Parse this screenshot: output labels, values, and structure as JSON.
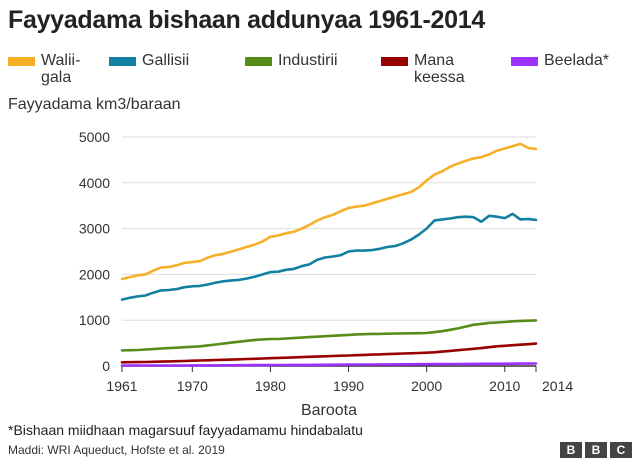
{
  "title": "Fayyadama bishaan addunyaa 1961-2014",
  "footnote": "*Bishaan miidhaan magarsuuf fayyadamamu hindabalatu",
  "source": "Maddi: WRI Aqueduct, Hofste et al. 2019",
  "logo": {
    "letters": [
      "B",
      "B",
      "C"
    ]
  },
  "chart_data": {
    "type": "line",
    "title": "Fayyadama bishaan addunyaa 1961-2014",
    "ylabel": "Fayyadama km3/baraan",
    "xlabel": "Baroota",
    "xlim": [
      1961,
      2014
    ],
    "ylim": [
      0,
      5000
    ],
    "yticks": [
      0,
      1000,
      2000,
      3000,
      4000,
      5000
    ],
    "ytick_labels": [
      "0",
      "1000",
      "2000",
      "3000",
      "4000",
      "5000"
    ],
    "xticks": [
      1961,
      1970,
      1980,
      1990,
      2000,
      2010,
      2014
    ],
    "xtick_labels": [
      "1961",
      "1970",
      "1980",
      "1990",
      "2000",
      "2010",
      "2014"
    ],
    "grid": true,
    "legend_position": "top",
    "x": [
      1961,
      1962,
      1963,
      1964,
      1965,
      1966,
      1967,
      1968,
      1969,
      1970,
      1971,
      1972,
      1973,
      1974,
      1975,
      1976,
      1977,
      1978,
      1979,
      1980,
      1981,
      1982,
      1983,
      1984,
      1985,
      1986,
      1987,
      1988,
      1989,
      1990,
      1991,
      1992,
      1993,
      1994,
      1995,
      1996,
      1997,
      1998,
      1999,
      2000,
      2001,
      2002,
      2003,
      2004,
      2005,
      2006,
      2007,
      2008,
      2009,
      2010,
      2011,
      2012,
      2013,
      2014
    ],
    "series": [
      {
        "name": "Walii-\ngala",
        "color": "#f5b028",
        "values": [
          1900,
          1940,
          1980,
          2000,
          2080,
          2150,
          2160,
          2200,
          2250,
          2270,
          2290,
          2370,
          2420,
          2450,
          2500,
          2550,
          2600,
          2650,
          2720,
          2820,
          2850,
          2900,
          2930,
          3000,
          3080,
          3180,
          3250,
          3300,
          3380,
          3450,
          3480,
          3500,
          3550,
          3600,
          3650,
          3700,
          3750,
          3800,
          3900,
          4050,
          4180,
          4250,
          4350,
          4420,
          4480,
          4530,
          4560,
          4620,
          4700,
          4750,
          4800,
          4850,
          4760,
          4740
        ]
      },
      {
        "name": "Gallisii",
        "color": "#1380a1",
        "values": [
          1450,
          1490,
          1520,
          1540,
          1600,
          1650,
          1660,
          1680,
          1720,
          1740,
          1750,
          1780,
          1820,
          1850,
          1870,
          1880,
          1910,
          1950,
          2000,
          2050,
          2060,
          2100,
          2120,
          2180,
          2220,
          2320,
          2370,
          2390,
          2420,
          2500,
          2520,
          2520,
          2530,
          2560,
          2600,
          2620,
          2680,
          2760,
          2870,
          3000,
          3180,
          3200,
          3220,
          3250,
          3260,
          3250,
          3150,
          3280,
          3260,
          3230,
          3320,
          3200,
          3210,
          3190
        ]
      },
      {
        "name": "Industirii",
        "color": "#588c18",
        "values": [
          340,
          345,
          350,
          360,
          370,
          380,
          390,
          400,
          410,
          420,
          430,
          450,
          470,
          490,
          510,
          530,
          550,
          570,
          580,
          590,
          590,
          600,
          610,
          620,
          630,
          640,
          650,
          660,
          670,
          680,
          690,
          695,
          700,
          700,
          705,
          710,
          712,
          714,
          716,
          720,
          740,
          760,
          790,
          820,
          860,
          900,
          920,
          940,
          950,
          960,
          975,
          985,
          990,
          995
        ]
      },
      {
        "name": "Mana\nkeessa",
        "color": "#990000",
        "values": [
          80,
          82,
          85,
          88,
          92,
          96,
          100,
          105,
          110,
          115,
          120,
          125,
          130,
          135,
          140,
          146,
          152,
          158,
          164,
          170,
          176,
          182,
          188,
          194,
          200,
          206,
          212,
          218,
          224,
          230,
          236,
          242,
          248,
          254,
          260,
          266,
          272,
          278,
          284,
          290,
          300,
          315,
          330,
          345,
          360,
          375,
          390,
          410,
          430,
          440,
          455,
          465,
          475,
          490
        ]
      },
      {
        "name": "Beelada*",
        "color": "#9b30ff",
        "values": [
          10,
          10,
          10,
          10,
          11,
          11,
          11,
          12,
          12,
          13,
          13,
          14,
          14,
          15,
          16,
          17,
          18,
          19,
          20,
          20,
          21,
          22,
          23,
          24,
          25,
          26,
          27,
          28,
          29,
          30,
          31,
          32,
          33,
          34,
          35,
          36,
          37,
          38,
          39,
          40,
          41,
          42,
          43,
          44,
          45,
          46,
          47,
          48,
          49,
          50,
          51,
          52,
          53,
          54
        ]
      }
    ]
  }
}
